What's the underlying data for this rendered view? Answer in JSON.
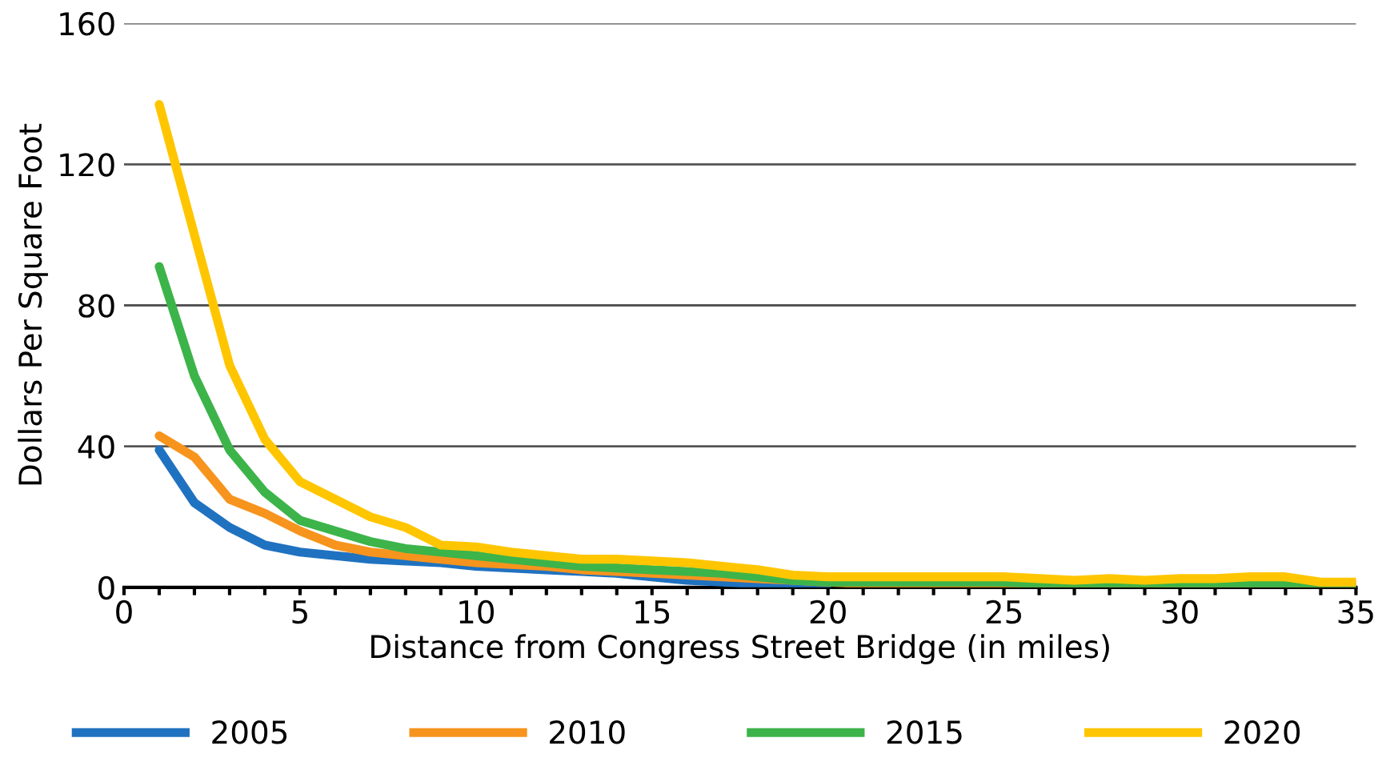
{
  "chart_data": {
    "type": "line",
    "xlabel": "Distance from Congress Street Bridge (in miles)",
    "ylabel": "Dollars Per Square Foot",
    "x": [
      1,
      2,
      3,
      4,
      5,
      6,
      7,
      8,
      9,
      10,
      11,
      12,
      13,
      14,
      15,
      16,
      17,
      18,
      19,
      20,
      21,
      22,
      23,
      24,
      25,
      26,
      27,
      28,
      29,
      30,
      31,
      32,
      33,
      34,
      35
    ],
    "series": [
      {
        "name": "2005",
        "color": "#1f72c0",
        "values": [
          39,
          24,
          17,
          12,
          10,
          9,
          8,
          7.5,
          7,
          6,
          5.5,
          5,
          4.5,
          4,
          3,
          2,
          1.5,
          1,
          1,
          1,
          null,
          null,
          null,
          null,
          null,
          null,
          null,
          null,
          null,
          null,
          null,
          null,
          null,
          null,
          null
        ]
      },
      {
        "name": "2010",
        "color": "#f7941d",
        "values": [
          43,
          37,
          25,
          21,
          16,
          12,
          10,
          9,
          8,
          7,
          6.5,
          6,
          5,
          4.5,
          4,
          3.5,
          3,
          2.5,
          2,
          1.5,
          1,
          1,
          1,
          1,
          1,
          1,
          1,
          1,
          1,
          1,
          1,
          1,
          1,
          1,
          1
        ]
      },
      {
        "name": "2015",
        "color": "#3cb44a",
        "values": [
          91,
          60,
          39,
          27,
          19,
          16,
          13,
          11,
          10,
          9,
          8,
          7,
          6,
          5.5,
          5,
          4.5,
          4,
          3,
          2,
          1.5,
          1.5,
          1.5,
          1.5,
          1.5,
          1.5,
          1,
          1,
          1,
          1,
          1,
          0.5,
          0.5,
          1,
          0,
          0
        ]
      },
      {
        "name": "2020",
        "color": "#ffc600",
        "values": [
          137,
          100,
          63,
          42,
          30,
          25,
          20,
          17,
          12,
          11.5,
          10,
          9,
          8,
          8,
          7.5,
          7,
          6,
          5,
          3.5,
          3,
          3,
          3,
          3,
          3,
          3,
          2.5,
          2,
          2.5,
          2,
          2.5,
          2.5,
          3,
          3,
          1.5,
          1.5
        ]
      }
    ],
    "xlim": [
      0,
      35
    ],
    "ylim": [
      0,
      160
    ],
    "xticks": [
      0,
      {
        "value": 1,
        "label": null
      },
      {
        "value": 2,
        "label": null
      },
      {
        "value": 3,
        "label": null
      },
      {
        "value": 4,
        "label": null
      },
      5,
      {
        "value": 6,
        "label": null
      },
      {
        "value": 7,
        "label": null
      },
      {
        "value": 8,
        "label": null
      },
      {
        "value": 9,
        "label": null
      },
      10,
      {
        "value": 11,
        "label": null
      },
      {
        "value": 12,
        "label": null
      },
      {
        "value": 13,
        "label": null
      },
      {
        "value": 14,
        "label": null
      },
      15,
      {
        "value": 16,
        "label": null
      },
      {
        "value": 17,
        "label": null
      },
      {
        "value": 18,
        "label": null
      },
      {
        "value": 19,
        "label": null
      },
      20,
      {
        "value": 21,
        "label": null
      },
      {
        "value": 22,
        "label": null
      },
      {
        "value": 23,
        "label": null
      },
      {
        "value": 24,
        "label": null
      },
      25,
      {
        "value": 26,
        "label": null
      },
      {
        "value": 27,
        "label": null
      },
      {
        "value": 28,
        "label": null
      },
      {
        "value": 29,
        "label": null
      },
      30,
      {
        "value": 31,
        "label": null
      },
      {
        "value": 32,
        "label": null
      },
      {
        "value": 33,
        "label": null
      },
      {
        "value": 34,
        "label": null
      },
      35
    ],
    "yticks": [
      0,
      40,
      80,
      120,
      160
    ],
    "grid": "y",
    "legend": "bottom",
    "marker": "none",
    "line_style": "solid"
  }
}
